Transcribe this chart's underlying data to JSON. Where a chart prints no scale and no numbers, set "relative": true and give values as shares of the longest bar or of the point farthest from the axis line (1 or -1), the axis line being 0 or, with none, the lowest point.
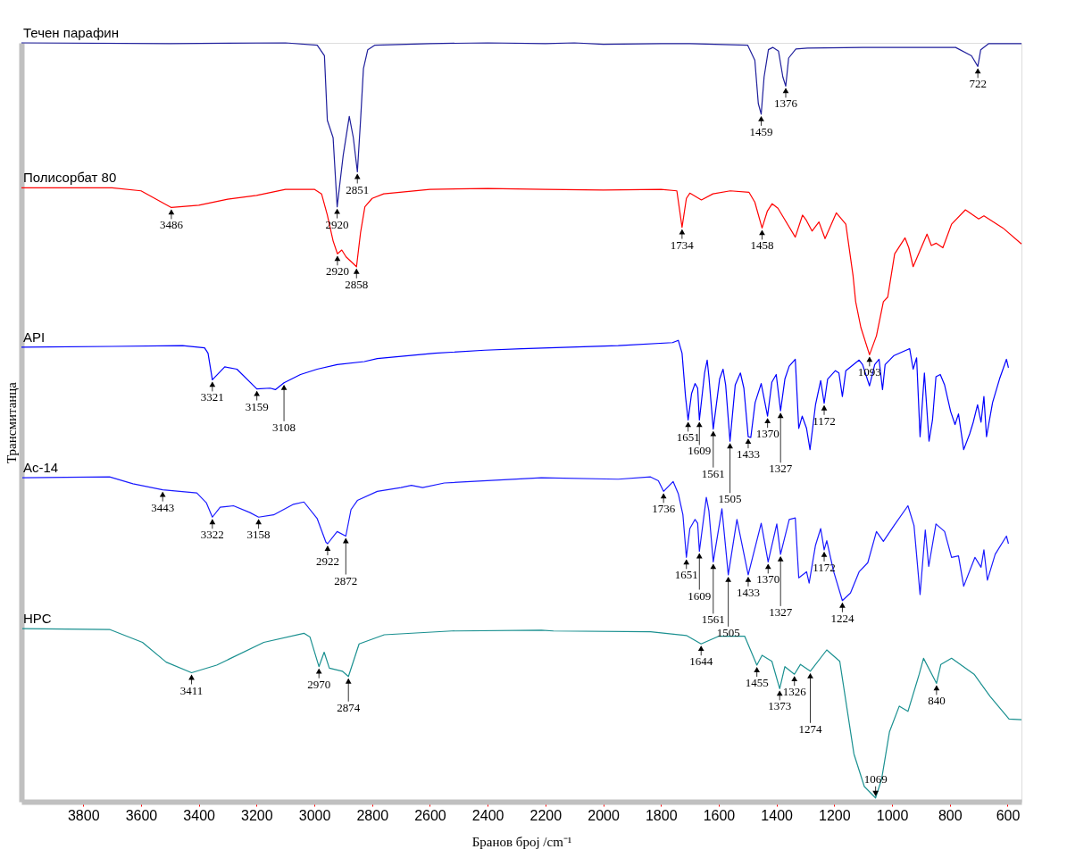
{
  "chart_data": {
    "type": "line",
    "relative": true,
    "xlabel": "Бранов број /cm⁻¹",
    "ylabel": "Трансмитанца",
    "xlim": [
      4014,
      552
    ],
    "xticks": [
      3800,
      3600,
      3400,
      3200,
      3000,
      2800,
      2600,
      2400,
      2200,
      2000,
      1800,
      1600,
      1400,
      1200,
      1000,
      800,
      600
    ],
    "grid": false,
    "marker": "none",
    "line_style": "solid",
    "series": [
      {
        "name": "Течен парафин",
        "color": "#1f1f9c",
        "x": [
          4014,
          3500,
          3100,
          2990,
          2965,
          2955,
          2948,
          2935,
          2921,
          2900,
          2879,
          2865,
          2851,
          2840,
          2830,
          2815,
          2790,
          2600,
          2400,
          2200,
          2100,
          2000,
          1800,
          1700,
          1500,
          1475,
          1463,
          1453,
          1443,
          1428,
          1413,
          1393,
          1378,
          1368,
          1358,
          1333,
          1293,
          1100,
          900,
          780,
          725,
          703,
          693,
          665,
          552
        ],
        "values": [
          1.0,
          0.999,
          1.0,
          0.997,
          0.983,
          0.898,
          0.89,
          0.875,
          0.784,
          0.852,
          0.903,
          0.875,
          0.83,
          0.898,
          0.966,
          0.991,
          0.997,
          0.999,
          1.0,
          0.999,
          1.0,
          0.998,
          0.999,
          0.999,
          0.997,
          0.977,
          0.92,
          0.906,
          0.955,
          0.991,
          0.994,
          0.989,
          0.955,
          0.943,
          0.98,
          0.992,
          0.993,
          0.994,
          0.994,
          0.994,
          0.983,
          0.969,
          0.991,
          0.999,
          0.999
        ]
      },
      {
        "name": "Полисорбат 80",
        "color": "#ff0000",
        "x": [
          4014,
          3700,
          3600,
          3495,
          3400,
          3300,
          3200,
          3100,
          3000,
          2975,
          2955,
          2935,
          2920,
          2905,
          2890,
          2854,
          2840,
          2825,
          2800,
          2760,
          2600,
          2400,
          2200,
          2000,
          1800,
          1745,
          1727,
          1712,
          1700,
          1660,
          1620,
          1560,
          1495,
          1475,
          1450,
          1432,
          1415,
          1395,
          1335,
          1310,
          1298,
          1277,
          1253,
          1232,
          1193,
          1160,
          1135,
          1126,
          1108,
          1078,
          1054,
          1030,
          1015,
          991,
          955,
          942,
          927,
          879,
          864,
          847,
          824,
          794,
          746,
          700,
          682,
          616,
          552
        ],
        "values": [
          0.809,
          0.809,
          0.805,
          0.783,
          0.786,
          0.794,
          0.799,
          0.807,
          0.807,
          0.801,
          0.773,
          0.739,
          0.722,
          0.727,
          0.718,
          0.705,
          0.75,
          0.784,
          0.795,
          0.801,
          0.807,
          0.808,
          0.807,
          0.806,
          0.807,
          0.805,
          0.757,
          0.795,
          0.802,
          0.793,
          0.801,
          0.805,
          0.803,
          0.79,
          0.756,
          0.778,
          0.788,
          0.782,
          0.744,
          0.773,
          0.767,
          0.752,
          0.764,
          0.742,
          0.776,
          0.761,
          0.693,
          0.659,
          0.625,
          0.589,
          0.614,
          0.659,
          0.665,
          0.722,
          0.743,
          0.73,
          0.705,
          0.748,
          0.733,
          0.736,
          0.73,
          0.761,
          0.78,
          0.768,
          0.772,
          0.756,
          0.735
        ]
      },
      {
        "name": "API",
        "color": "#0000ff",
        "x": [
          4014,
          3700,
          3456,
          3380,
          3368,
          3353,
          3310,
          3268,
          3199,
          3153,
          3135,
          3105,
          3048,
          2990,
          2921,
          2827,
          2782,
          2583,
          2410,
          2283,
          1948,
          1760,
          1740,
          1727,
          1715,
          1706,
          1694,
          1682,
          1673,
          1667,
          1649,
          1640,
          1634,
          1619,
          1597,
          1585,
          1576,
          1561,
          1543,
          1525,
          1513,
          1498,
          1489,
          1474,
          1453,
          1431,
          1416,
          1401,
          1386,
          1371,
          1356,
          1335,
          1323,
          1311,
          1296,
          1284,
          1265,
          1247,
          1235,
          1223,
          1196,
          1184,
          1172,
          1160,
          1114,
          1102,
          1078,
          1060,
          1045,
          1033,
          1024,
          993,
          939,
          927,
          915,
          903,
          888,
          872,
          860,
          848,
          833,
          818,
          797,
          782,
          770,
          752,
          731,
          719,
          704,
          692,
          682,
          673,
          652,
          628,
          604,
          597
        ],
        "values": [
          0.599,
          0.6,
          0.601,
          0.598,
          0.591,
          0.556,
          0.573,
          0.57,
          0.544,
          0.545,
          0.543,
          0.552,
          0.563,
          0.57,
          0.576,
          0.58,
          0.584,
          0.591,
          0.595,
          0.597,
          0.601,
          0.605,
          0.608,
          0.591,
          0.534,
          0.503,
          0.538,
          0.551,
          0.545,
          0.503,
          0.565,
          0.582,
          0.56,
          0.491,
          0.557,
          0.57,
          0.549,
          0.475,
          0.549,
          0.565,
          0.545,
          0.481,
          0.48,
          0.526,
          0.551,
          0.508,
          0.553,
          0.563,
          0.515,
          0.557,
          0.574,
          0.583,
          0.492,
          0.508,
          0.492,
          0.464,
          0.523,
          0.555,
          0.525,
          0.557,
          0.568,
          0.565,
          0.534,
          0.568,
          0.582,
          0.576,
          0.548,
          0.576,
          0.583,
          0.543,
          0.576,
          0.588,
          0.597,
          0.57,
          0.585,
          0.481,
          0.565,
          0.475,
          0.503,
          0.56,
          0.563,
          0.549,
          0.514,
          0.497,
          0.511,
          0.464,
          0.485,
          0.5,
          0.523,
          0.5,
          0.534,
          0.481,
          0.526,
          0.557,
          0.583,
          0.572
        ]
      },
      {
        "name": "Ac-14",
        "color": "#1a1aff",
        "x": [
          4011,
          3709,
          3628,
          3525,
          3407,
          3374,
          3353,
          3326,
          3280,
          3223,
          3193,
          3141,
          3072,
          3036,
          2990,
          2960,
          2954,
          2921,
          2891,
          2873,
          2851,
          2782,
          2700,
          2664,
          2625,
          2550,
          2214,
          1948,
          1836,
          1809,
          1791,
          1758,
          1740,
          1724,
          1712,
          1700,
          1682,
          1673,
          1667,
          1643,
          1634,
          1619,
          1589,
          1567,
          1537,
          1498,
          1453,
          1429,
          1399,
          1386,
          1356,
          1335,
          1323,
          1296,
          1287,
          1265,
          1247,
          1235,
          1226,
          1202,
          1172,
          1144,
          1114,
          1084,
          1054,
          1030,
          993,
          945,
          924,
          903,
          885,
          873,
          848,
          818,
          794,
          770,
          752,
          713,
          692,
          682,
          670,
          643,
          604,
          597
        ],
        "values": [
          0.427,
          0.428,
          0.419,
          0.411,
          0.407,
          0.394,
          0.375,
          0.388,
          0.39,
          0.381,
          0.375,
          0.378,
          0.392,
          0.395,
          0.373,
          0.342,
          0.34,
          0.356,
          0.35,
          0.385,
          0.397,
          0.409,
          0.414,
          0.417,
          0.414,
          0.42,
          0.427,
          0.425,
          0.428,
          0.423,
          0.409,
          0.422,
          0.406,
          0.378,
          0.322,
          0.36,
          0.372,
          0.367,
          0.33,
          0.401,
          0.383,
          0.316,
          0.386,
          0.299,
          0.372,
          0.299,
          0.367,
          0.316,
          0.366,
          0.326,
          0.372,
          0.374,
          0.295,
          0.303,
          0.288,
          0.338,
          0.36,
          0.332,
          0.344,
          0.303,
          0.265,
          0.275,
          0.303,
          0.315,
          0.356,
          0.343,
          0.364,
          0.39,
          0.364,
          0.273,
          0.358,
          0.31,
          0.366,
          0.356,
          0.322,
          0.324,
          0.284,
          0.322,
          0.309,
          0.332,
          0.292,
          0.326,
          0.35,
          0.34
        ]
      },
      {
        "name": "HPC",
        "color": "#1a9090",
        "x": [
          4011,
          3709,
          3595,
          3513,
          3425,
          3338,
          3175,
          3036,
          3015,
          2984,
          2966,
          2948,
          2903,
          2882,
          2845,
          2758,
          2525,
          2214,
          2172,
          1836,
          1712,
          1661,
          1601,
          1510,
          1468,
          1450,
          1416,
          1389,
          1371,
          1338,
          1317,
          1283,
          1226,
          1181,
          1132,
          1096,
          1057,
          1036,
          1009,
          975,
          945,
          906,
          891,
          846,
          831,
          794,
          716,
          661,
          595,
          552
        ],
        "values": [
          0.228,
          0.227,
          0.21,
          0.184,
          0.17,
          0.18,
          0.21,
          0.222,
          0.217,
          0.178,
          0.197,
          0.176,
          0.172,
          0.165,
          0.208,
          0.22,
          0.225,
          0.226,
          0.225,
          0.224,
          0.219,
          0.208,
          0.218,
          0.218,
          0.18,
          0.193,
          0.185,
          0.149,
          0.178,
          0.168,
          0.181,
          0.172,
          0.2,
          0.185,
          0.063,
          0.02,
          0.005,
          0.03,
          0.092,
          0.126,
          0.119,
          0.168,
          0.189,
          0.156,
          0.181,
          0.189,
          0.168,
          0.139,
          0.109,
          0.108
        ]
      }
    ],
    "annotations": [
      {
        "text": "2920",
        "x": 2921,
        "y": 0.784
      },
      {
        "text": "2851",
        "x": 2851,
        "y": 0.83
      },
      {
        "text": "1459",
        "x": 1453,
        "y": 0.906
      },
      {
        "text": "1376",
        "x": 1368,
        "y": 0.943
      },
      {
        "text": "722",
        "x": 703,
        "y": 0.969
      },
      {
        "text": "3486",
        "x": 3495,
        "y": 0.783
      },
      {
        "text": "2920",
        "x": 2920,
        "y": 0.722
      },
      {
        "text": "2858",
        "x": 2854,
        "y": 0.705
      },
      {
        "text": "1734",
        "x": 1727,
        "y": 0.757
      },
      {
        "text": "1458",
        "x": 1450,
        "y": 0.756
      },
      {
        "text": "1093",
        "x": 1078,
        "y": 0.589
      },
      {
        "text": "3321",
        "x": 3353,
        "y": 0.556
      },
      {
        "text": "3159",
        "x": 3199,
        "y": 0.544
      },
      {
        "text": "3108",
        "x": 3105,
        "y": 0.552
      },
      {
        "text": "1651",
        "x": 1706,
        "y": 0.503
      },
      {
        "text": "1609",
        "x": 1667,
        "y": 0.503
      },
      {
        "text": "1561",
        "x": 1619,
        "y": 0.491
      },
      {
        "text": "1505",
        "x": 1561,
        "y": 0.475
      },
      {
        "text": "1433",
        "x": 1498,
        "y": 0.481
      },
      {
        "text": "1370",
        "x": 1431,
        "y": 0.508
      },
      {
        "text": "1327",
        "x": 1386,
        "y": 0.515
      },
      {
        "text": "1172",
        "x": 1235,
        "y": 0.525
      },
      {
        "text": "3443",
        "x": 3525,
        "y": 0.411
      },
      {
        "text": "3322",
        "x": 3353,
        "y": 0.375
      },
      {
        "text": "3158",
        "x": 3193,
        "y": 0.375
      },
      {
        "text": "2922",
        "x": 2954,
        "y": 0.34
      },
      {
        "text": "2872",
        "x": 2891,
        "y": 0.35
      },
      {
        "text": "1736",
        "x": 1791,
        "y": 0.409
      },
      {
        "text": "1651",
        "x": 1712,
        "y": 0.322
      },
      {
        "text": "1609",
        "x": 1667,
        "y": 0.33
      },
      {
        "text": "1561",
        "x": 1619,
        "y": 0.316
      },
      {
        "text": "1505",
        "x": 1567,
        "y": 0.299
      },
      {
        "text": "1433",
        "x": 1498,
        "y": 0.299
      },
      {
        "text": "1370",
        "x": 1429,
        "y": 0.316
      },
      {
        "text": "1327",
        "x": 1386,
        "y": 0.326
      },
      {
        "text": "1172",
        "x": 1235,
        "y": 0.332
      },
      {
        "text": "1224",
        "x": 1172,
        "y": 0.265
      },
      {
        "text": "3411",
        "x": 3425,
        "y": 0.17
      },
      {
        "text": "2970",
        "x": 2984,
        "y": 0.178
      },
      {
        "text": "2874",
        "x": 2882,
        "y": 0.165
      },
      {
        "text": "1644",
        "x": 1661,
        "y": 0.208
      },
      {
        "text": "1455",
        "x": 1468,
        "y": 0.18
      },
      {
        "text": "1373",
        "x": 1389,
        "y": 0.149
      },
      {
        "text": "1326",
        "x": 1338,
        "y": 0.168
      },
      {
        "text": "1274",
        "x": 1283,
        "y": 0.172
      },
      {
        "text": "1069",
        "x": 1057,
        "y": 0.005
      },
      {
        "text": "840",
        "x": 846,
        "y": 0.156
      }
    ]
  }
}
